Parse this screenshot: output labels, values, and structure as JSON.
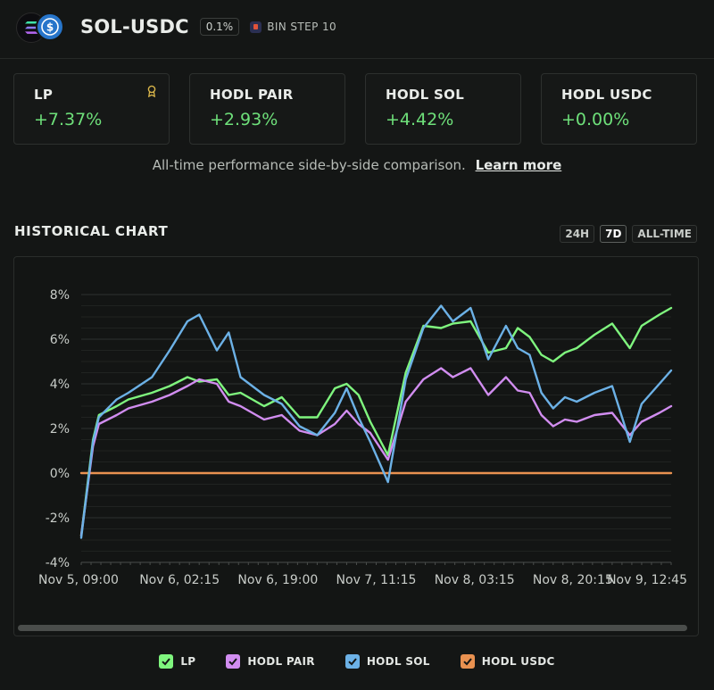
{
  "header": {
    "pair": "SOL-USDC",
    "fee": "0.1%",
    "bin_step": "BIN STEP 10"
  },
  "cards": [
    {
      "label": "LP",
      "value": "+7.37%",
      "has_award": true
    },
    {
      "label": "HODL PAIR",
      "value": "+2.93%",
      "has_award": false
    },
    {
      "label": "HODL SOL",
      "value": "+4.42%",
      "has_award": false
    },
    {
      "label": "HODL USDC",
      "value": "+0.00%",
      "has_award": false
    }
  ],
  "subtitle": {
    "text": "All-time performance side-by-side comparison.",
    "link": "Learn more"
  },
  "historical": {
    "title": "HISTORICAL CHART",
    "ranges": [
      "24H",
      "7D",
      "ALL-TIME"
    ],
    "active_range": "7D"
  },
  "colors": {
    "lp": "#7ff57e",
    "hodl_pair": "#d18df0",
    "hodl_sol": "#6cb1e6",
    "hodl_usdc": "#e99150",
    "positive": "#6ee07a"
  },
  "chart_data": {
    "type": "line",
    "xlabels": [
      "Nov 5, 09:00",
      "Nov 6, 02:15",
      "Nov 6, 19:00",
      "Nov 7, 11:15",
      "Nov 8, 03:15",
      "Nov 8, 20:15",
      "Nov 9, 12:45"
    ],
    "ylim": [
      -4,
      8
    ],
    "yticks": [
      "8%",
      "6%",
      "4%",
      "2%",
      "0%",
      "-2%",
      "-4%"
    ],
    "x": [
      0,
      2,
      3,
      6,
      8,
      12,
      15,
      18,
      20,
      23,
      25,
      27,
      31,
      34,
      37,
      40,
      43,
      45,
      47,
      49,
      52,
      55,
      58,
      61,
      63,
      66,
      69,
      72,
      74,
      76,
      78,
      80,
      82,
      84,
      87,
      90,
      93,
      95,
      98,
      100
    ],
    "series": [
      {
        "name": "LP",
        "color": "#7ff57e",
        "values": [
          -2.8,
          1.5,
          2.6,
          3.0,
          3.3,
          3.6,
          3.9,
          4.3,
          4.1,
          4.2,
          3.5,
          3.6,
          3.0,
          3.4,
          2.5,
          2.5,
          3.8,
          4.0,
          3.5,
          2.3,
          0.8,
          4.5,
          6.6,
          6.5,
          6.7,
          6.8,
          5.4,
          5.6,
          6.5,
          6.1,
          5.3,
          5.0,
          5.4,
          5.6,
          6.2,
          6.7,
          5.6,
          6.6,
          7.1,
          7.4
        ]
      },
      {
        "name": "HODL PAIR",
        "color": "#d18df0",
        "values": [
          -2.8,
          1.2,
          2.2,
          2.6,
          2.9,
          3.2,
          3.5,
          3.9,
          4.2,
          4.0,
          3.2,
          3.0,
          2.4,
          2.6,
          1.9,
          1.7,
          2.2,
          2.8,
          2.2,
          1.8,
          0.6,
          3.2,
          4.2,
          4.7,
          4.3,
          4.7,
          3.5,
          4.3,
          3.7,
          3.6,
          2.6,
          2.1,
          2.4,
          2.3,
          2.6,
          2.7,
          1.7,
          2.3,
          2.7,
          3.0
        ]
      },
      {
        "name": "HODL SOL",
        "color": "#6cb1e6",
        "values": [
          -2.9,
          1.4,
          2.5,
          3.3,
          3.6,
          4.3,
          5.5,
          6.8,
          7.1,
          5.5,
          6.3,
          4.3,
          3.5,
          3.1,
          2.1,
          1.7,
          2.7,
          3.8,
          2.5,
          1.4,
          -0.4,
          4.2,
          6.5,
          7.5,
          6.8,
          7.4,
          5.1,
          6.6,
          5.6,
          5.3,
          3.6,
          2.9,
          3.4,
          3.2,
          3.6,
          3.9,
          1.4,
          3.1,
          4.0,
          4.6
        ]
      },
      {
        "name": "HODL USDC",
        "color": "#e99150",
        "values": [
          0,
          0,
          0,
          0,
          0,
          0,
          0,
          0,
          0,
          0,
          0,
          0,
          0,
          0,
          0,
          0,
          0,
          0,
          0,
          0,
          0,
          0,
          0,
          0,
          0,
          0,
          0,
          0,
          0,
          0,
          0,
          0,
          0,
          0,
          0,
          0,
          0,
          0,
          0,
          0
        ]
      }
    ],
    "grid": true,
    "legend": "bottom"
  },
  "legend": [
    {
      "label": "LP",
      "color": "#7ff57e"
    },
    {
      "label": "HODL PAIR",
      "color": "#d18df0"
    },
    {
      "label": "HODL SOL",
      "color": "#6cb1e6"
    },
    {
      "label": "HODL USDC",
      "color": "#e99150"
    }
  ]
}
